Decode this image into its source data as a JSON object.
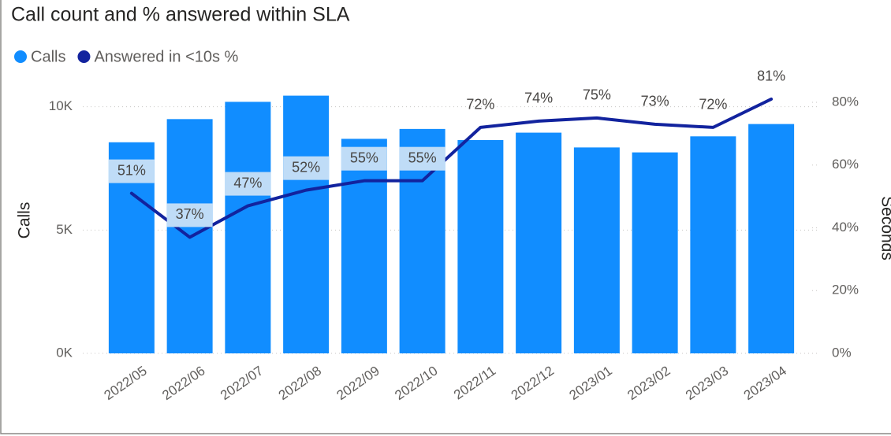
{
  "chart_data": {
    "type": "bar-line",
    "title": "Call count and % answered within SLA",
    "ylabel": "Calls",
    "y2label": "Seconds",
    "categories": [
      "2022/05",
      "2022/06",
      "2022/07",
      "2022/08",
      "2022/09",
      "2022/10",
      "2022/11",
      "2022/12",
      "2023/01",
      "2023/02",
      "2023/03",
      "2023/04"
    ],
    "series": [
      {
        "name": "Calls",
        "color": "#118dff",
        "values": [
          8560,
          9500,
          10200,
          10450,
          8700,
          9100,
          8650,
          8950,
          8350,
          8150,
          8800,
          9300
        ]
      },
      {
        "name": "Answered in <10s %",
        "color": "#12239e",
        "axis": "y2",
        "values": [
          51,
          37,
          47,
          52,
          55,
          55,
          72,
          74,
          75,
          73,
          72,
          81
        ],
        "value_labels": [
          "51%",
          "37%",
          "47%",
          "52%",
          "55%",
          "55%",
          "72%",
          "74%",
          "75%",
          "73%",
          "72%",
          "81%"
        ]
      }
    ],
    "ylim": [
      0,
      10500
    ],
    "yticks": [
      {
        "value": 0,
        "label": "0K"
      },
      {
        "value": 5000,
        "label": "5K"
      },
      {
        "value": 10000,
        "label": "10K"
      }
    ],
    "y2lim": [
      0,
      82.5
    ],
    "y2ticks": [
      {
        "value": 0,
        "label": "0%"
      },
      {
        "value": 20,
        "label": "20%"
      },
      {
        "value": 40,
        "label": "40%"
      },
      {
        "value": 60,
        "label": "60%"
      },
      {
        "value": 80,
        "label": "80%"
      }
    ],
    "grid": true,
    "legend": "top-left"
  }
}
